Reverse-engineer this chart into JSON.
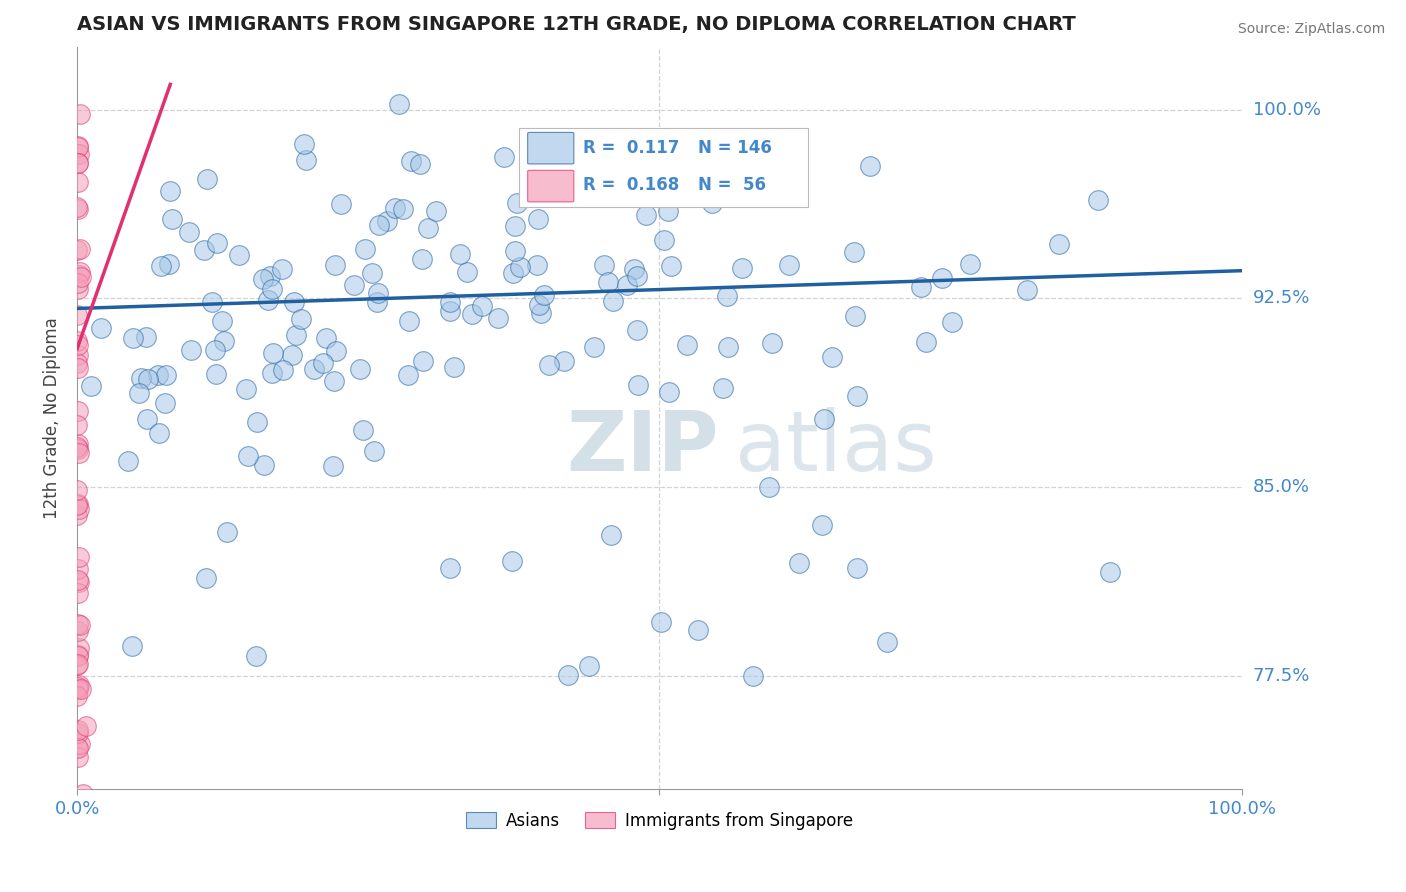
{
  "title": "ASIAN VS IMMIGRANTS FROM SINGAPORE 12TH GRADE, NO DIPLOMA CORRELATION CHART",
  "source": "Source: ZipAtlas.com",
  "ylabel": "12th Grade, No Diploma",
  "xlim": [
    0.0,
    1.0
  ],
  "ylim": [
    0.73,
    1.025
  ],
  "yticks": [
    0.775,
    0.85,
    0.925,
    1.0
  ],
  "ytick_labels": [
    "77.5%",
    "85.0%",
    "92.5%",
    "100.0%"
  ],
  "xtick_labels": [
    "0.0%",
    "100.0%"
  ],
  "legend_labels": [
    "Asians",
    "Immigrants from Singapore"
  ],
  "r_blue": 0.117,
  "n_blue": 146,
  "r_pink": 0.168,
  "n_pink": 56,
  "blue_color": "#a8c8e8",
  "pink_color": "#f4a0b8",
  "blue_line_color": "#2060a0",
  "pink_line_color": "#e03070",
  "ylabel_color": "#444444",
  "tick_label_color": "#4488cc",
  "watermark_color": "#d0dde8",
  "background_color": "#ffffff",
  "grid_color": "#c8c8c8",
  "blue_trend_x0": 0.0,
  "blue_trend_y0": 0.921,
  "blue_trend_x1": 1.0,
  "blue_trend_y1": 0.936,
  "pink_trend_x0": 0.0,
  "pink_trend_y0": 0.905,
  "pink_trend_x1": 0.08,
  "pink_trend_y1": 1.01
}
